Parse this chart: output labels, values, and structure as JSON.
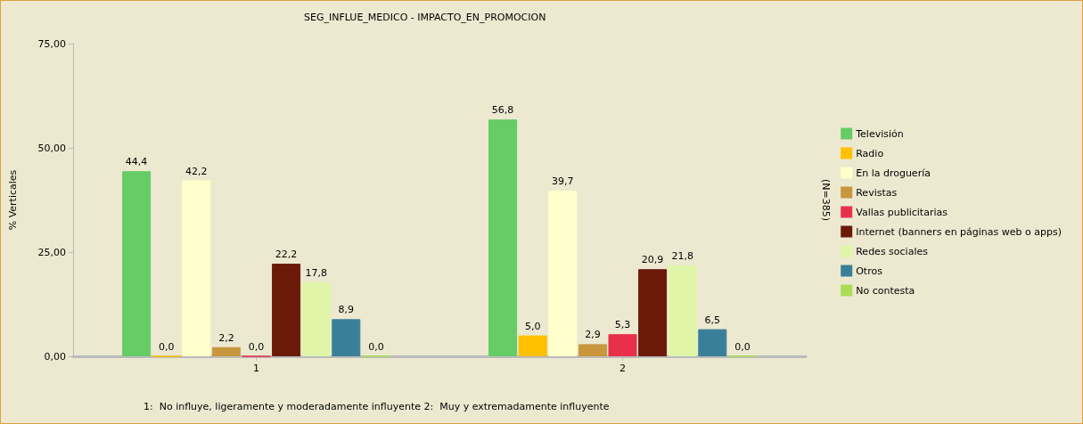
{
  "chart_data": {
    "type": "bar",
    "title": "SEG_INFLUE_MEDICO - IMPACTO_EN_PROMOCION",
    "ylabel": "% Verticales",
    "categories": [
      "1",
      "2"
    ],
    "series": [
      {
        "name": "Televisión",
        "color": "#66cc66",
        "values": [
          44.4,
          56.8
        ],
        "value_labels": [
          "44,4",
          "56,8"
        ]
      },
      {
        "name": "Radio",
        "color": "#ffc000",
        "values": [
          0.0,
          5.0
        ],
        "value_labels": [
          "0,0",
          "5,0"
        ]
      },
      {
        "name": "En la droguería",
        "color": "#ffffcc",
        "values": [
          42.2,
          39.7
        ],
        "value_labels": [
          "42,2",
          "39,7"
        ]
      },
      {
        "name": "Revistas",
        "color": "#c8963c",
        "values": [
          2.2,
          2.9
        ],
        "value_labels": [
          "2,2",
          "2,9"
        ]
      },
      {
        "name": "Vallas publicitarias",
        "color": "#e8304a",
        "values": [
          0.0,
          5.3
        ],
        "value_labels": [
          "0,0",
          "5,3"
        ]
      },
      {
        "name": "Internet (banners en páginas web o apps)",
        "color": "#6b1a0a",
        "values": [
          22.2,
          20.9
        ],
        "value_labels": [
          "22,2",
          "20,9"
        ]
      },
      {
        "name": "Redes sociales",
        "color": "#e0f5a8",
        "values": [
          17.8,
          21.8
        ],
        "value_labels": [
          "17,8",
          "21,8"
        ]
      },
      {
        "name": "Otros",
        "color": "#3a7f99",
        "values": [
          8.9,
          6.5
        ],
        "value_labels": [
          "8,9",
          "6,5"
        ]
      },
      {
        "name": "No contesta",
        "color": "#aadd55",
        "values": [
          0.0,
          0.0
        ],
        "value_labels": [
          "0,0",
          "0,0"
        ]
      }
    ],
    "ylim": [
      0,
      75
    ],
    "yticks": [
      {
        "value": 0,
        "label": "0,00"
      },
      {
        "value": 25,
        "label": "25,00"
      },
      {
        "value": 50,
        "label": "50,00"
      },
      {
        "value": 75,
        "label": "75,00"
      }
    ],
    "grid": false,
    "legend": "right",
    "annotations": [
      "(N=385)",
      "1:  No influye, ligeramente y moderadamente influyente 2:  Muy y extremadamente influyente"
    ]
  }
}
